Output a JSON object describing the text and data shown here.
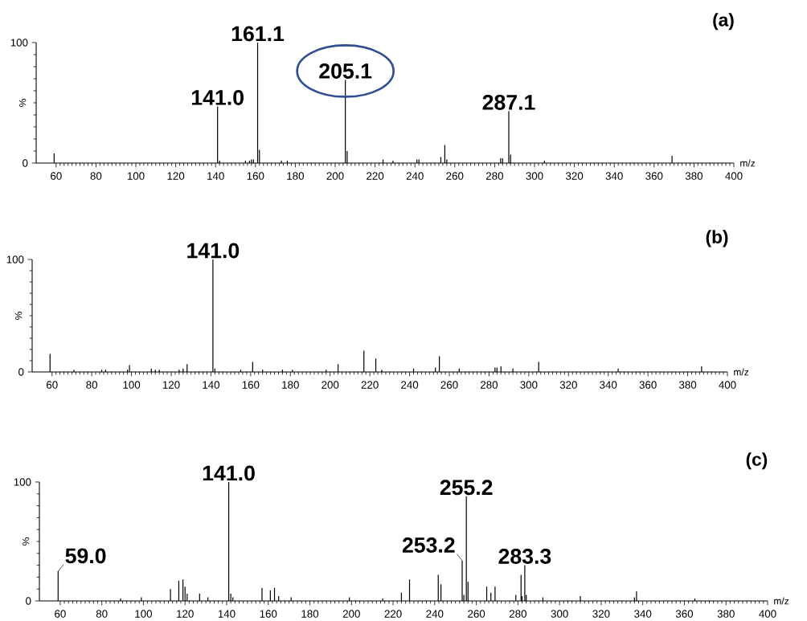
{
  "chart_data": [
    {
      "type": "bar",
      "title": "(a)",
      "xlabel": "m/z",
      "ylabel": "%",
      "color": "#000000",
      "xlim": [
        50,
        400
      ],
      "xticks": [
        60,
        80,
        100,
        120,
        140,
        160,
        180,
        200,
        220,
        240,
        260,
        280,
        300,
        320,
        340,
        360,
        380,
        400
      ],
      "ylim": [
        0,
        100
      ],
      "yticks": [
        0,
        100
      ],
      "x": [
        59,
        141.0,
        142,
        155,
        157,
        158,
        159,
        161.1,
        162,
        173,
        176,
        205.1,
        206,
        224,
        229,
        241,
        242,
        253,
        255,
        256,
        283,
        284,
        287.1,
        288,
        305,
        369
      ],
      "values": [
        8,
        47,
        2,
        2,
        2,
        3,
        3,
        100,
        11,
        2,
        2,
        69,
        10,
        3,
        2,
        3,
        3,
        5,
        15,
        3,
        4,
        4,
        43,
        7,
        2,
        6
      ],
      "annotations": [
        {
          "text": "141.0",
          "x": 141.0,
          "y": 47
        },
        {
          "text": "161.1",
          "x": 161.1,
          "y": 100
        },
        {
          "text": "205.1",
          "x": 205.1,
          "y": 69
        },
        {
          "text": "287.1",
          "x": 287.1,
          "y": 43
        }
      ]
    },
    {
      "type": "bar",
      "title": "(b)",
      "xlabel": "m/z",
      "ylabel": "%",
      "color": "#000000",
      "xlim": [
        50,
        400
      ],
      "xticks": [
        60,
        80,
        100,
        120,
        140,
        160,
        180,
        200,
        220,
        240,
        260,
        280,
        300,
        320,
        340,
        360,
        380,
        400
      ],
      "ylim": [
        0,
        100
      ],
      "yticks": [
        0,
        100
      ],
      "x": [
        59,
        71,
        85,
        87,
        98,
        99,
        110,
        112,
        114,
        124,
        126,
        128,
        141.0,
        142,
        155,
        161,
        166,
        176,
        181,
        198,
        204,
        217,
        223,
        226,
        242,
        253,
        255,
        265,
        283,
        284,
        286,
        292,
        305,
        345,
        387
      ],
      "values": [
        16,
        2,
        2,
        2,
        2,
        6,
        3,
        2,
        2,
        2,
        3,
        7,
        100,
        3,
        2,
        9,
        2,
        2,
        2,
        2,
        7,
        19,
        12,
        2,
        3,
        4,
        14,
        3,
        4,
        4,
        5,
        3,
        9,
        3,
        5
      ],
      "annotations": [
        {
          "text": "141.0",
          "x": 141.0,
          "y": 100
        }
      ]
    },
    {
      "type": "bar",
      "title": "(c)",
      "xlabel": "m/z",
      "ylabel": "%",
      "color": "#000000",
      "xlim": [
        50,
        400
      ],
      "xticks": [
        60,
        80,
        100,
        120,
        140,
        160,
        180,
        200,
        220,
        240,
        260,
        280,
        300,
        320,
        340,
        360,
        380,
        400
      ],
      "ylim": [
        0,
        100
      ],
      "yticks": [
        0,
        100
      ],
      "x": [
        59.0,
        89,
        99,
        113,
        117,
        119,
        120,
        121,
        127,
        131,
        141.0,
        142,
        143,
        157,
        161,
        163,
        165,
        171,
        199,
        215,
        224,
        227.9,
        241.7,
        243,
        253.2,
        254,
        255.2,
        256,
        265,
        267,
        269,
        279,
        281.5,
        282,
        283.3,
        284,
        292,
        310,
        336,
        337,
        365
      ],
      "values": [
        25,
        2,
        3,
        10,
        17,
        18,
        12,
        6,
        6,
        3,
        100,
        6,
        3,
        11,
        9,
        11,
        4,
        3,
        3,
        2,
        7,
        18,
        22,
        14,
        34,
        5,
        88,
        16,
        12,
        7,
        12,
        5,
        22,
        4,
        30,
        5,
        3,
        4,
        3,
        8,
        2
      ],
      "annotations": [
        {
          "text": "59.0",
          "x": 59.0,
          "y": 25
        },
        {
          "text": "141.0",
          "x": 141.0,
          "y": 100
        },
        {
          "text": "253.2",
          "x": 253.2,
          "y": 34
        },
        {
          "text": "255.2",
          "x": 255.2,
          "y": 88
        },
        {
          "text": "283.3",
          "x": 283.3,
          "y": 30
        }
      ]
    }
  ]
}
